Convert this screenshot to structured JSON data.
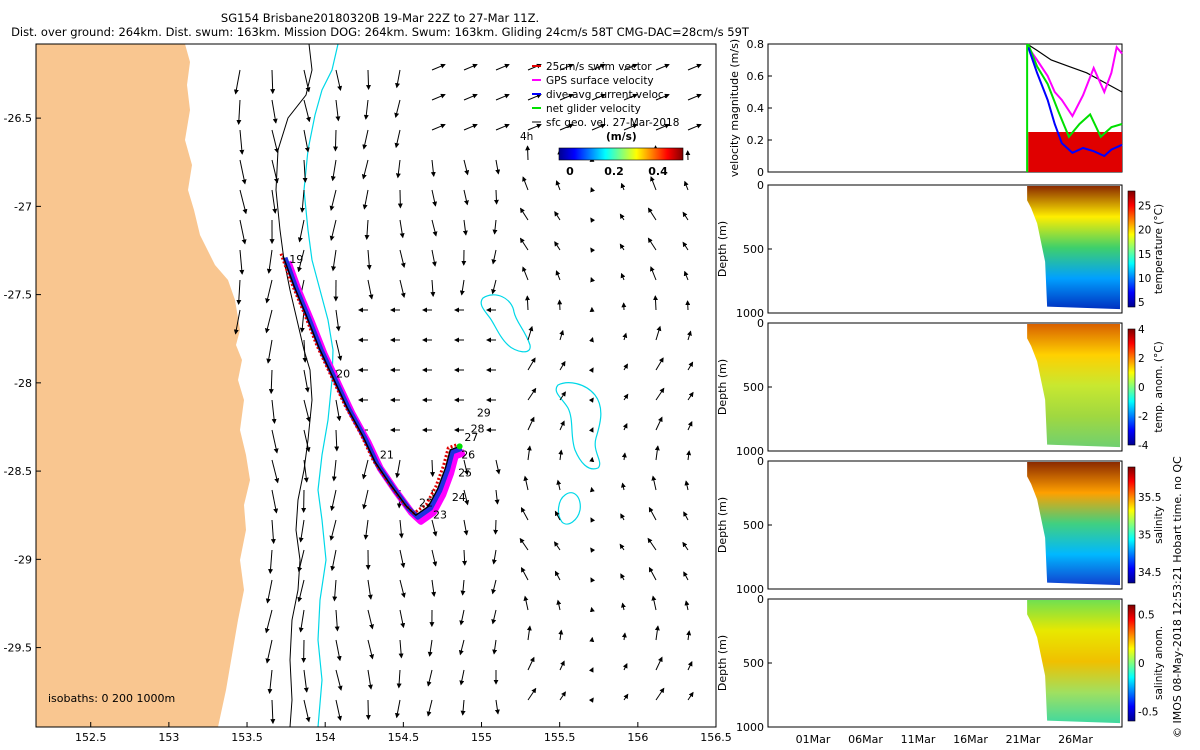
{
  "header": {
    "title": "SG154 Brisbane20180320B 19-Mar 22Z to 27-Mar 11Z.",
    "subtitle": "Dist. over ground: 264km. Dist. swum: 163km. Mission DOG: 264km. Swum: 163km. Gliding 24cm/s 58T CMG-DAC=28cm/s 59T"
  },
  "credit": "© IMOS 08-May-2018 12:53:21 Hobart time. no QC",
  "colors": {
    "land": "#f9c690",
    "coast_200m": "#000000",
    "isobath_1000m": "#00d8e8",
    "swim_vector": "#e00000",
    "gps_velocity": "#ff00ff",
    "dac": "#0000ff",
    "net_velocity": "#00e000",
    "sfc_geo": "#000000"
  },
  "chart_data": [
    {
      "type": "map",
      "name": "track-map",
      "xlim": [
        152.15,
        156.5
      ],
      "ylim": [
        -29.95,
        -26.08
      ],
      "xticks": [
        "152.5",
        "153",
        "153.5",
        "154",
        "154.5",
        "155",
        "155.5",
        "156",
        "156.5"
      ],
      "yticks": [
        "-26.5",
        "-27",
        "-27.5",
        "-28",
        "-28.5",
        "-29",
        "-29.5"
      ],
      "legend": {
        "placement": "top-right",
        "entries": [
          "25cm/s swim vector",
          "GPS surface velocity",
          "dive-avg current veloc.",
          "net glider velocity",
          "sfc geo. vel. 27-Mar-2018"
        ]
      },
      "colorbar": {
        "label": "(m/s)",
        "prefix": "4h",
        "ticks": [
          "0",
          "0.2",
          "0.4"
        ],
        "range": [
          0,
          0.5
        ]
      },
      "isobaths_label": "isobaths: 0   200  1000m",
      "track": [
        [
          153.73,
          -27.28
        ],
        [
          153.8,
          -27.45
        ],
        [
          153.88,
          -27.62
        ],
        [
          153.96,
          -27.8
        ],
        [
          154.05,
          -27.97
        ],
        [
          154.14,
          -28.14
        ],
        [
          154.24,
          -28.3
        ],
        [
          154.32,
          -28.45
        ],
        [
          154.42,
          -28.58
        ],
        [
          154.52,
          -28.7
        ],
        [
          154.58,
          -28.75
        ],
        [
          154.66,
          -28.7
        ],
        [
          154.72,
          -28.6
        ],
        [
          154.77,
          -28.48
        ],
        [
          154.8,
          -28.38
        ],
        [
          154.86,
          -28.36
        ]
      ],
      "day_labels": [
        {
          "text": "19",
          "lon": 153.77,
          "lat": -27.32
        },
        {
          "text": "20",
          "lon": 154.07,
          "lat": -27.97
        },
        {
          "text": "21",
          "lon": 154.35,
          "lat": -28.43
        },
        {
          "text": "22",
          "lon": 154.6,
          "lat": -28.7
        },
        {
          "text": "23",
          "lon": 154.69,
          "lat": -28.77
        },
        {
          "text": "24",
          "lon": 154.81,
          "lat": -28.67
        },
        {
          "text": "25",
          "lon": 154.85,
          "lat": -28.53
        },
        {
          "text": "26",
          "lon": 154.87,
          "lat": -28.43
        },
        {
          "text": "27",
          "lon": 154.89,
          "lat": -28.33
        },
        {
          "text": "28",
          "lon": 154.93,
          "lat": -28.28
        },
        {
          "text": "29",
          "lon": 154.97,
          "lat": -28.19
        }
      ]
    },
    {
      "type": "line",
      "name": "velocity-magnitude",
      "ylabel": "velocity magnitude (m/s)",
      "ylim": [
        0,
        0.8
      ],
      "yticks": [
        "0",
        "0.2",
        "0.4",
        "0.6",
        "0.8"
      ],
      "series": [
        {
          "name": "sfc geo. vel. 27-Mar-2018",
          "color": "#000000",
          "t": [
            0.732,
            0.76,
            0.8,
            0.85,
            0.9,
            0.95,
            1.0
          ],
          "v": [
            0.8,
            0.76,
            0.7,
            0.66,
            0.62,
            0.56,
            0.5
          ]
        },
        {
          "name": "GPS surface velocity",
          "color": "#ff00ff",
          "t": [
            0.735,
            0.76,
            0.79,
            0.81,
            0.83,
            0.86,
            0.89,
            0.92,
            0.95,
            0.97,
            0.985,
            1.0
          ],
          "v": [
            0.78,
            0.7,
            0.6,
            0.5,
            0.45,
            0.35,
            0.48,
            0.65,
            0.5,
            0.62,
            0.78,
            0.74
          ]
        },
        {
          "name": "net glider velocity",
          "color": "#00e000",
          "t": [
            0.735,
            0.76,
            0.79,
            0.82,
            0.85,
            0.88,
            0.91,
            0.94,
            0.97,
            1.0
          ],
          "v": [
            0.8,
            0.66,
            0.55,
            0.38,
            0.22,
            0.3,
            0.36,
            0.22,
            0.28,
            0.3
          ]
        },
        {
          "name": "dive-avg current veloc.",
          "color": "#0000ff",
          "t": [
            0.735,
            0.76,
            0.79,
            0.81,
            0.83,
            0.86,
            0.89,
            0.92,
            0.95,
            0.97,
            1.0
          ],
          "v": [
            0.78,
            0.62,
            0.45,
            0.3,
            0.18,
            0.12,
            0.15,
            0.13,
            0.1,
            0.14,
            0.17
          ]
        },
        {
          "name": "25cm/s swim vector",
          "color": "#e00000",
          "fill": true,
          "t": [
            0.735,
            1.0
          ],
          "v": [
            0.25,
            0.25
          ]
        }
      ]
    },
    {
      "type": "heatmap",
      "name": "temperature-section",
      "ylabel": "Depth (m)",
      "yticks": [
        "0",
        "500",
        "1000"
      ],
      "ylim": [
        1000,
        0
      ],
      "colorbar": {
        "label": "temperature (°C)",
        "ticks": [
          "5",
          "10",
          "15",
          "20",
          "25"
        ],
        "range": [
          4,
          28
        ]
      }
    },
    {
      "type": "heatmap",
      "name": "temperature-anomaly-section",
      "ylabel": "Depth (m)",
      "yticks": [
        "0",
        "500",
        "1000"
      ],
      "ylim": [
        1000,
        0
      ],
      "colorbar": {
        "label": "temp. anom. (°C)",
        "ticks": [
          "-4",
          "-2",
          "0",
          "2",
          "4"
        ],
        "range": [
          -4,
          4
        ]
      }
    },
    {
      "type": "heatmap",
      "name": "salinity-section",
      "ylabel": "Depth (m)",
      "yticks": [
        "0",
        "500",
        "1000"
      ],
      "ylim": [
        1000,
        0
      ],
      "colorbar": {
        "label": "salinity",
        "ticks": [
          "34.5",
          "35",
          "35.5"
        ],
        "range": [
          34.35,
          35.9
        ]
      }
    },
    {
      "type": "heatmap",
      "name": "salinity-anomaly-section",
      "ylabel": "Depth (m)",
      "yticks": [
        "0",
        "500",
        "1000"
      ],
      "ylim": [
        1000,
        0
      ],
      "xticks": [
        "01Mar",
        "06Mar",
        "11Mar",
        "16Mar",
        "21Mar",
        "26Mar"
      ],
      "colorbar": {
        "label": "salinity anom.",
        "ticks": [
          "-0.5",
          "0",
          "0.5"
        ],
        "range": [
          -0.6,
          0.6
        ]
      }
    }
  ]
}
